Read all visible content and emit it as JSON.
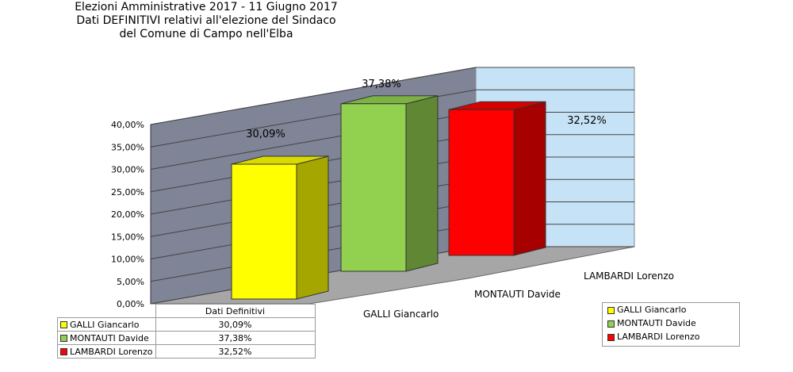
{
  "title": {
    "line1": "Elezioni Amministrative 2017 - 11 Giugno 2017",
    "line2": "Dati  DEFINITIVI relativi all'elezione del Sindaco",
    "line3": "del Comune di Campo nell'Elba"
  },
  "colors": {
    "galli": "#ffff00",
    "montauti": "#92d050",
    "lambardi": "#ff0000",
    "back_wall": "#c6e2f6",
    "side_wall": "#7f8496"
  },
  "table": {
    "header": "Dati Definitivi",
    "rows": [
      {
        "name": "GALLI Giancarlo",
        "value": "30,09%"
      },
      {
        "name": "MONTAUTI Davide",
        "value": "37,38%"
      },
      {
        "name": "LAMBARDI Lorenzo",
        "value": "32,52%"
      }
    ]
  },
  "legend": [
    "GALLI Giancarlo",
    "MONTAUTI Davide",
    "LAMBARDI Lorenzo"
  ],
  "chart_data": {
    "type": "bar",
    "categories": [
      "GALLI Giancarlo",
      "MONTAUTI Davide",
      "LAMBARDI Lorenzo"
    ],
    "values": [
      30.09,
      37.38,
      32.52
    ],
    "data_labels": [
      "30,09%",
      "37,38%",
      "32,52%"
    ],
    "ylim": [
      0,
      40
    ],
    "yticks": [
      "0,00%",
      "5,00%",
      "10,00%",
      "15,00%",
      "20,00%",
      "25,00%",
      "30,00%",
      "35,00%",
      "40,00%"
    ],
    "grid": true,
    "three_d": true,
    "legend_position": "bottom-right"
  }
}
